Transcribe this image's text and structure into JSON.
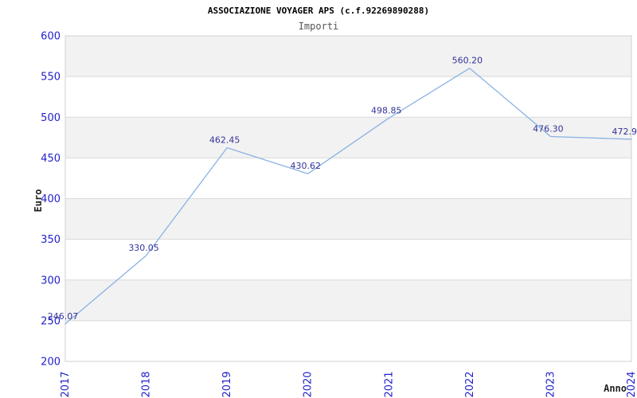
{
  "header": {
    "title": "ASSOCIAZIONE VOYAGER APS (c.f.92269890288)",
    "subtitle": "Importi"
  },
  "chart_data": {
    "type": "line",
    "title": "ASSOCIAZIONE VOYAGER APS (c.f.92269890288)",
    "subtitle": "Importi",
    "xlabel": "Anno",
    "ylabel": "Euro",
    "categories": [
      "2017",
      "2018",
      "2019",
      "2020",
      "2021",
      "2022",
      "2023",
      "2024"
    ],
    "values": [
      246.07,
      330.05,
      462.45,
      430.62,
      498.85,
      560.2,
      476.3,
      472.9
    ],
    "point_labels": [
      "246.07",
      "330.05",
      "462.45",
      "430.62",
      "498.85",
      "560.20",
      "476.30",
      "472.9"
    ],
    "yticks": [
      200,
      250,
      300,
      350,
      400,
      450,
      500,
      550,
      600
    ],
    "ylim": [
      200,
      600
    ],
    "ytick_step": 50,
    "grid": "horizontal",
    "band_fill": "alternating-gray-from-top",
    "legend": "none",
    "markers": "none",
    "colors": {
      "line": "#8ab2e3",
      "tick_label": "#2222cc",
      "point_label": "#333399",
      "band": "#f2f2f2",
      "grid": "#d9d9d9",
      "border": "#d0d0d0",
      "title": "#000000",
      "subtitle": "#555555",
      "axis_title": "#222222",
      "background": "#ffffff"
    }
  }
}
